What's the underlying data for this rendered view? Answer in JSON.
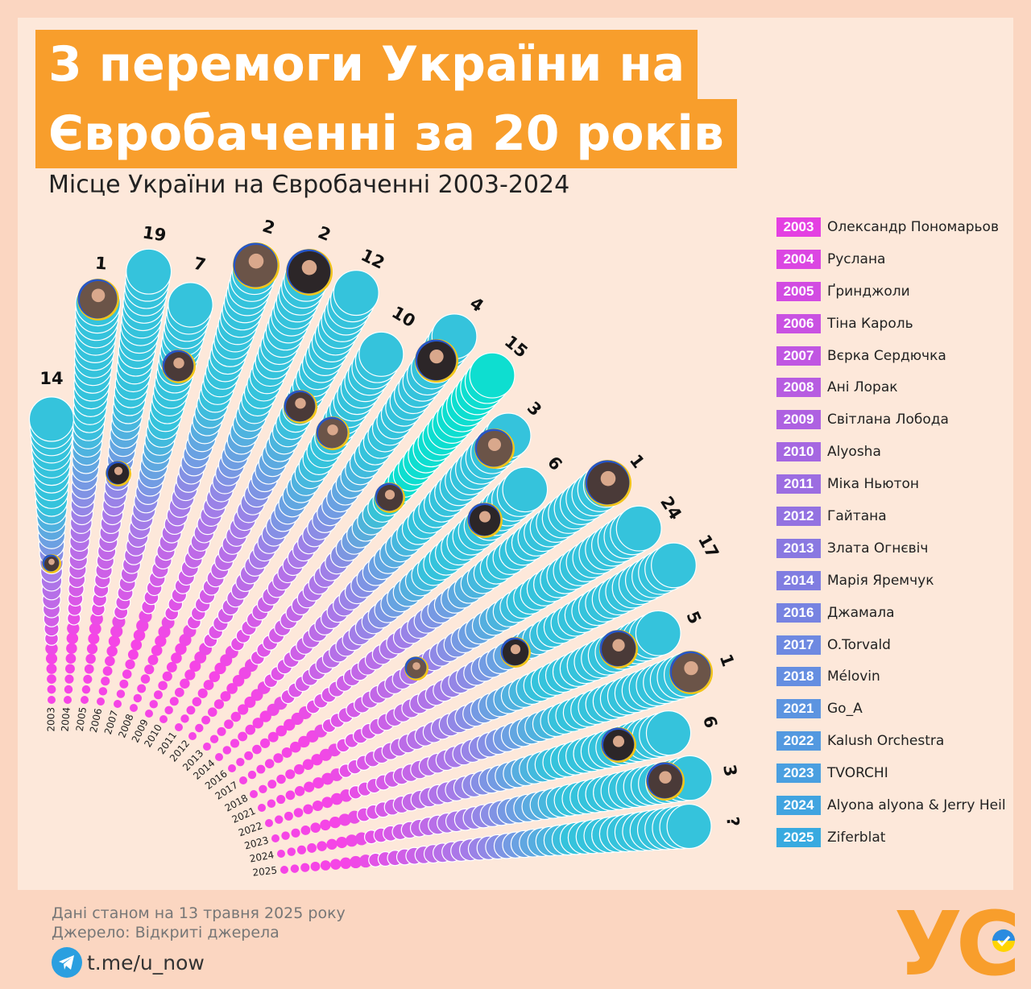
{
  "title_line1": "3 перемоги України на",
  "title_line2": "Євробаченні за 20 років",
  "subtitle": "Місце України на Євробаченні 2003-2024",
  "chart_data": {
    "type": "radial-bar",
    "title": "Місце України на Євробаченні 2003-2024",
    "categories": [
      "2003",
      "2004",
      "2005",
      "2006",
      "2007",
      "2008",
      "2009",
      "2010",
      "2011",
      "2012",
      "2013",
      "2014",
      "2016",
      "2017",
      "2018",
      "2021",
      "2022",
      "2023",
      "2024",
      "2025"
    ],
    "values": [
      "14",
      "1",
      "19",
      "7",
      "2",
      "2",
      "12",
      "10",
      "4",
      "15",
      "3",
      "6",
      "1",
      "24",
      "17",
      "5",
      "1",
      "6",
      "3",
      "?"
    ],
    "artists": [
      "Олександр Пономарьов",
      "Руслана",
      "Ґринджоли",
      "Тіна Кароль",
      "Вєрка Сердючка",
      "Ані Лорак",
      "Світлана Лобода",
      "Alyosha",
      "Міка Ньютон",
      "Гайтана",
      "Злата Огнєвіч",
      "Марія Яремчук",
      "Джамала",
      "O.Torvald",
      "Mélovin",
      "Go_A",
      "Kalush Orchestra",
      "TVORCHI",
      "Alyona alyona & Jerry Heil",
      "Ziferblat"
    ],
    "colors": {
      "start": "#f545e6",
      "mid": "#a57be8",
      "end": "#35c3dc"
    }
  },
  "footer": {
    "date_note": "Дані станом на 13 травня 2025 року",
    "source": "Джерело: Відкриті джерела",
    "telegram": "t.me/u_now"
  },
  "logo": "УС",
  "accent": "#f89e2c"
}
